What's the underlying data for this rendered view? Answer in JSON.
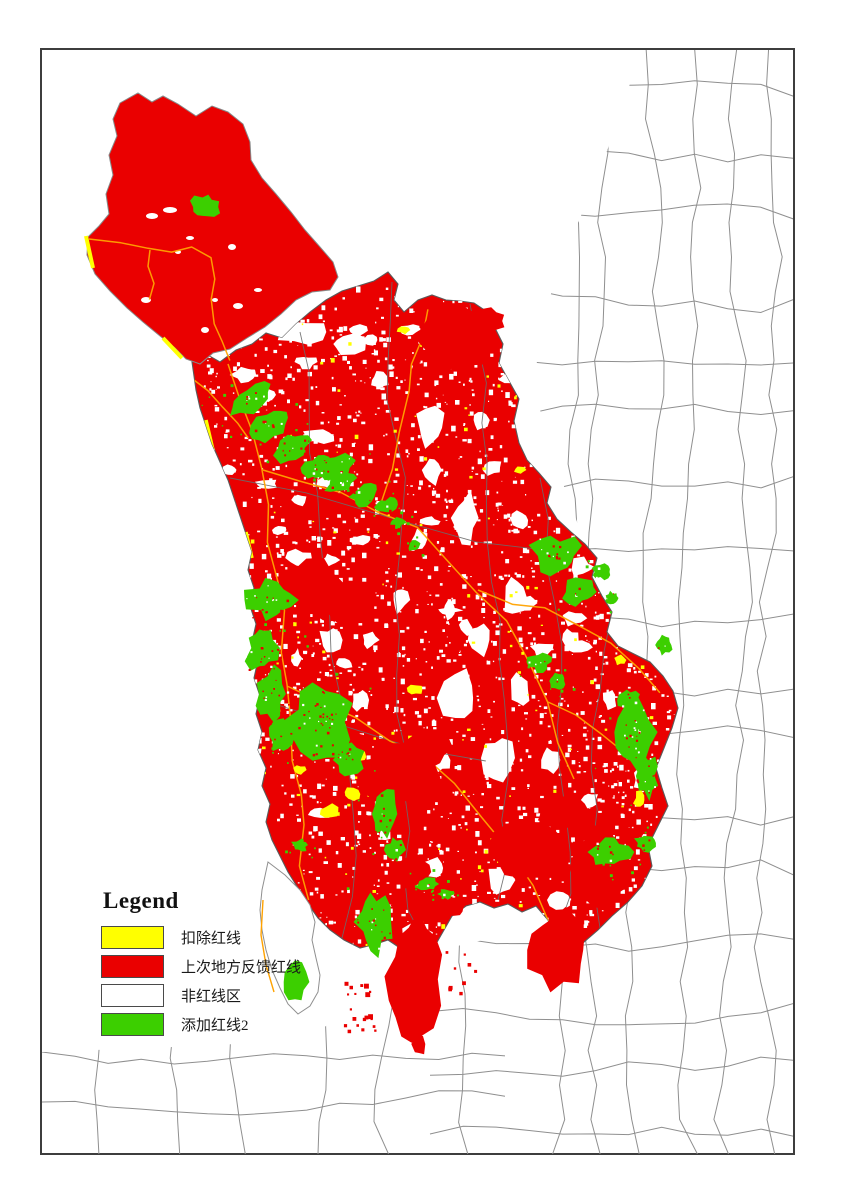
{
  "legend": {
    "title": "Legend",
    "items": [
      {
        "label": "扣除红线",
        "color": "#ffff00"
      },
      {
        "label": "上次地方反馈红线",
        "color": "#ea0000"
      },
      {
        "label": "非红线区",
        "color": "#ffffff"
      },
      {
        "label": "添加红线2",
        "color": "#3ccf00"
      }
    ]
  },
  "map": {
    "colors": {
      "deduct_redline_yellow": "#ffff00",
      "feedback_redline_red": "#ea0000",
      "non_redline_white": "#ffffff",
      "added_redline_green": "#3ccf00",
      "road_orange": "#ffa200",
      "district_boundary_gray": "#8f8f8f",
      "region_outline_gray": "#5a5a5a",
      "inner_boundary_dark": "#6a6a6a",
      "frame_border": "#3d3d3d",
      "page_background": "#ffffff"
    }
  }
}
